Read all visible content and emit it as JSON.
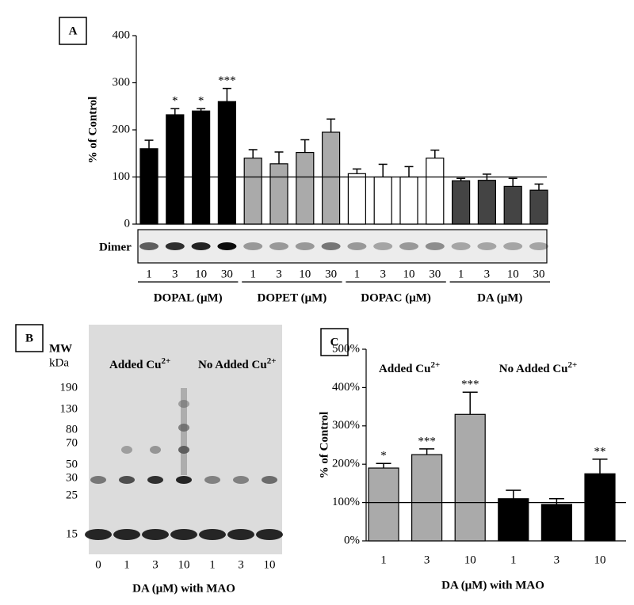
{
  "chart_data": [
    {
      "type": "bar",
      "panel": "A",
      "ylabel": "% of Control",
      "ylim": [
        0,
        400
      ],
      "yticks": [
        0,
        100,
        200,
        300,
        400
      ],
      "reference_line": 100,
      "gel_label": "Dimer",
      "groups": [
        {
          "name": "DOPAL (μM)",
          "color": "#000000",
          "categories": [
            "1",
            "3",
            "10",
            "30"
          ],
          "values": [
            160,
            232,
            240,
            260
          ],
          "errors": [
            18,
            13,
            5,
            28
          ],
          "significance": [
            null,
            "*",
            "*",
            "***"
          ]
        },
        {
          "name": "DOPET (μM)",
          "color": "#aaaaaa",
          "categories": [
            "1",
            "3",
            "10",
            "30"
          ],
          "values": [
            140,
            128,
            152,
            195
          ],
          "errors": [
            18,
            25,
            27,
            28
          ],
          "significance": [
            null,
            null,
            null,
            null
          ]
        },
        {
          "name": "DOPAC (μM)",
          "color": "#ffffff",
          "categories": [
            "1",
            "3",
            "10",
            "30"
          ],
          "values": [
            107,
            100,
            100,
            140
          ],
          "errors": [
            10,
            27,
            22,
            17
          ],
          "significance": [
            null,
            null,
            null,
            null
          ]
        },
        {
          "name": "DA (μM)",
          "color": "#444444",
          "categories": [
            "1",
            "3",
            "10",
            "30"
          ],
          "values": [
            92,
            93,
            80,
            72
          ],
          "errors": [
            5,
            13,
            17,
            13
          ],
          "significance": [
            null,
            null,
            null,
            null
          ]
        }
      ]
    },
    {
      "type": "gel",
      "panel": "B",
      "mw_title": "MW",
      "mw_unit": "kDa",
      "mw_markers": [
        190,
        130,
        80,
        70,
        50,
        30,
        25,
        15
      ],
      "annotations": [
        {
          "text": "Added Cu",
          "sup": "2+"
        },
        {
          "text": "No Added Cu",
          "sup": "2+"
        }
      ],
      "lanes": [
        "0",
        "1",
        "3",
        "10",
        "1",
        "3",
        "10"
      ],
      "xlabel": "DA (μM) with MAO"
    },
    {
      "type": "bar",
      "panel": "C",
      "ylabel": "% of Control",
      "ylim": [
        0,
        500
      ],
      "yticks": [
        {
          "value": 0,
          "label": "0%"
        },
        {
          "value": 100,
          "label": "100%"
        },
        {
          "value": 200,
          "label": "200%"
        },
        {
          "value": 300,
          "label": "300%"
        },
        {
          "value": 400,
          "label": "400%"
        },
        {
          "value": 500,
          "label": "500%"
        }
      ],
      "reference_line": 100,
      "xlabel": "DA (μM) with MAO",
      "groups": [
        {
          "name": "Added Cu",
          "name_sup": "2+",
          "color": "#aaaaaa",
          "categories": [
            "1",
            "3",
            "10"
          ],
          "values": [
            190,
            225,
            330
          ],
          "errors": [
            12,
            15,
            58
          ],
          "significance": [
            "*",
            "***",
            "***"
          ]
        },
        {
          "name": "No Added Cu",
          "name_sup": "2+",
          "color": "#000000",
          "categories": [
            "1",
            "3",
            "10"
          ],
          "values": [
            110,
            95,
            175
          ],
          "errors": [
            22,
            15,
            38
          ],
          "significance": [
            null,
            null,
            "**"
          ]
        }
      ]
    }
  ]
}
